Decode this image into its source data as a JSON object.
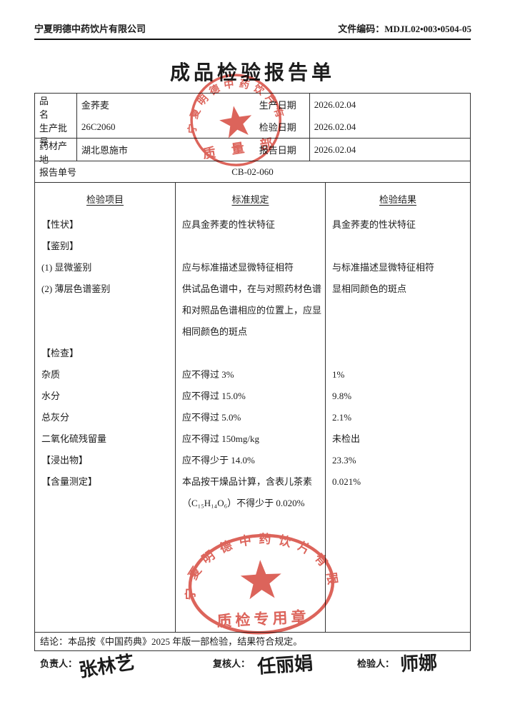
{
  "page": {
    "company": "宁夏明德中药饮片有限公司",
    "file_code": "文件编码：MDJL02•003•0504-05",
    "title": "成品检验报告单"
  },
  "info": {
    "product_label": "品　　名",
    "product": "金荞麦",
    "batch_label": "生产批号",
    "batch": "26C2060",
    "origin_label": "药材产地",
    "origin": "湖北恩施市",
    "prod_date_label": "生产日期",
    "prod_date": "2026.02.04",
    "test_date_label": "检验日期",
    "test_date": "2026.02.04",
    "report_date_label": "报告日期",
    "report_date": "2026.02.04",
    "report_no_label": "报告单号",
    "report_no": "CB-02-060"
  },
  "table": {
    "headers": [
      "检验项目",
      "标准规定",
      "检验结果"
    ],
    "rows": [
      {
        "item": "【性状】",
        "standard": [
          "应具金荞麦的性状特征"
        ],
        "result": "具金荞麦的性状特征"
      },
      {
        "item": "【鉴别】",
        "standard": [
          ""
        ],
        "result": ""
      },
      {
        "item": "(1) 显微鉴别",
        "standard": [
          "应与标准描述显微特征相符"
        ],
        "result": "与标准描述显微特征相符"
      },
      {
        "item": "(2) 薄层色谱鉴别",
        "standard": [
          "供试品色谱中，在与对照药材色谱",
          "和对照品色谱相应的位置上，应显",
          "相同颜色的斑点"
        ],
        "result": "显相同颜色的斑点"
      },
      {
        "item": "【检查】",
        "standard": [
          ""
        ],
        "result": ""
      },
      {
        "item": "杂质",
        "standard": [
          "应不得过 3%"
        ],
        "result": "1%"
      },
      {
        "item": "水分",
        "standard": [
          "应不得过 15.0%"
        ],
        "result": "9.8%"
      },
      {
        "item": "总灰分",
        "standard": [
          "应不得过 5.0%"
        ],
        "result": "2.1%"
      },
      {
        "item": "二氧化硫残留量",
        "standard": [
          "应不得过 150mg/kg"
        ],
        "result": "未检出"
      },
      {
        "item": "【浸出物】",
        "standard": [
          "应不得少于 14.0%"
        ],
        "result": "23.3%"
      },
      {
        "item": "【含量测定】",
        "standard": [
          "本品按干燥品计算，含表儿茶素",
          "（C₁₅H₁₄O₆）不得少于 0.020%"
        ],
        "result": "0.021%"
      }
    ]
  },
  "conclusion": "结论：本品按《中国药典》2025 年版一部检验，结果符合规定。",
  "signatures": {
    "lead_label": "负责人：",
    "lead": "张林艺",
    "review_label": "复核人：",
    "review": "任丽娟",
    "inspector_label": "检验人：",
    "inspector": "师娜"
  },
  "stamps": {
    "color": "#d6493e",
    "top": {
      "arc": "宁夏明德中药饮片有限公司",
      "bottom": "质 量 部"
    },
    "bottom": {
      "arc": "宁夏明德中药饮片有限公司",
      "bottom": "质检专用章"
    }
  }
}
